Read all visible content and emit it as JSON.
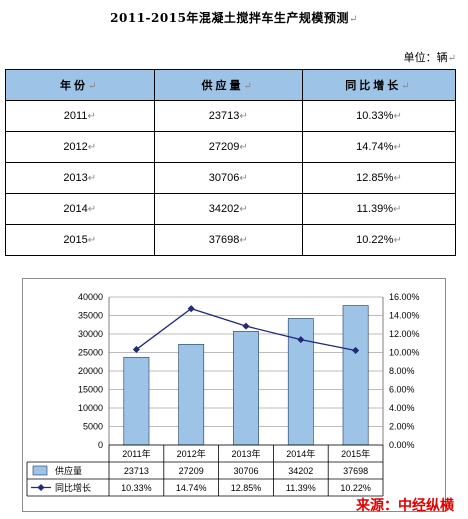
{
  "title": "2011-2015年混凝土搅拌车生产规模预测",
  "unit": "单位：辆",
  "table": {
    "headers": [
      "年份",
      "供应量",
      "同比增长"
    ],
    "rows": [
      [
        "2011",
        "23713",
        "10.33%"
      ],
      [
        "2012",
        "27209",
        "14.74%"
      ],
      [
        "2013",
        "30706",
        "12.85%"
      ],
      [
        "2014",
        "34202",
        "11.39%"
      ],
      [
        "2015",
        "37698",
        "10.22%"
      ]
    ]
  },
  "colors": {
    "bar": "#9dc3e6",
    "bar_stroke": "#1f3864",
    "line": "#1f2a78",
    "header_bg": "#9dc3e6",
    "watermark": "#e00000"
  },
  "chart_data": {
    "type": "bar",
    "categories": [
      "2011年",
      "2012年",
      "2013年",
      "2014年",
      "2015年"
    ],
    "series": [
      {
        "name": "供应量",
        "type": "bar",
        "axis": "left",
        "values": [
          23713,
          27209,
          30706,
          34202,
          37698
        ],
        "labels": [
          "23713",
          "27209",
          "30706",
          "34202",
          "37698"
        ]
      },
      {
        "name": "同比增长",
        "type": "line",
        "axis": "right",
        "values": [
          10.33,
          14.74,
          12.85,
          11.39,
          10.22
        ],
        "labels": [
          "10.33%",
          "14.74%",
          "12.85%",
          "11.39%",
          "10.22%"
        ]
      }
    ],
    "ylim_left": [
      0,
      40000
    ],
    "yticks_left": [
      "0",
      "5000",
      "10000",
      "15000",
      "20000",
      "25000",
      "30000",
      "35000",
      "40000"
    ],
    "ylim_right": [
      0,
      16
    ],
    "yticks_right": [
      "0.00%",
      "2.00%",
      "4.00%",
      "6.00%",
      "8.00%",
      "10.00%",
      "12.00%",
      "14.00%",
      "16.00%"
    ],
    "grid": true,
    "data_table": true
  },
  "watermark": "来源：中经纵横"
}
